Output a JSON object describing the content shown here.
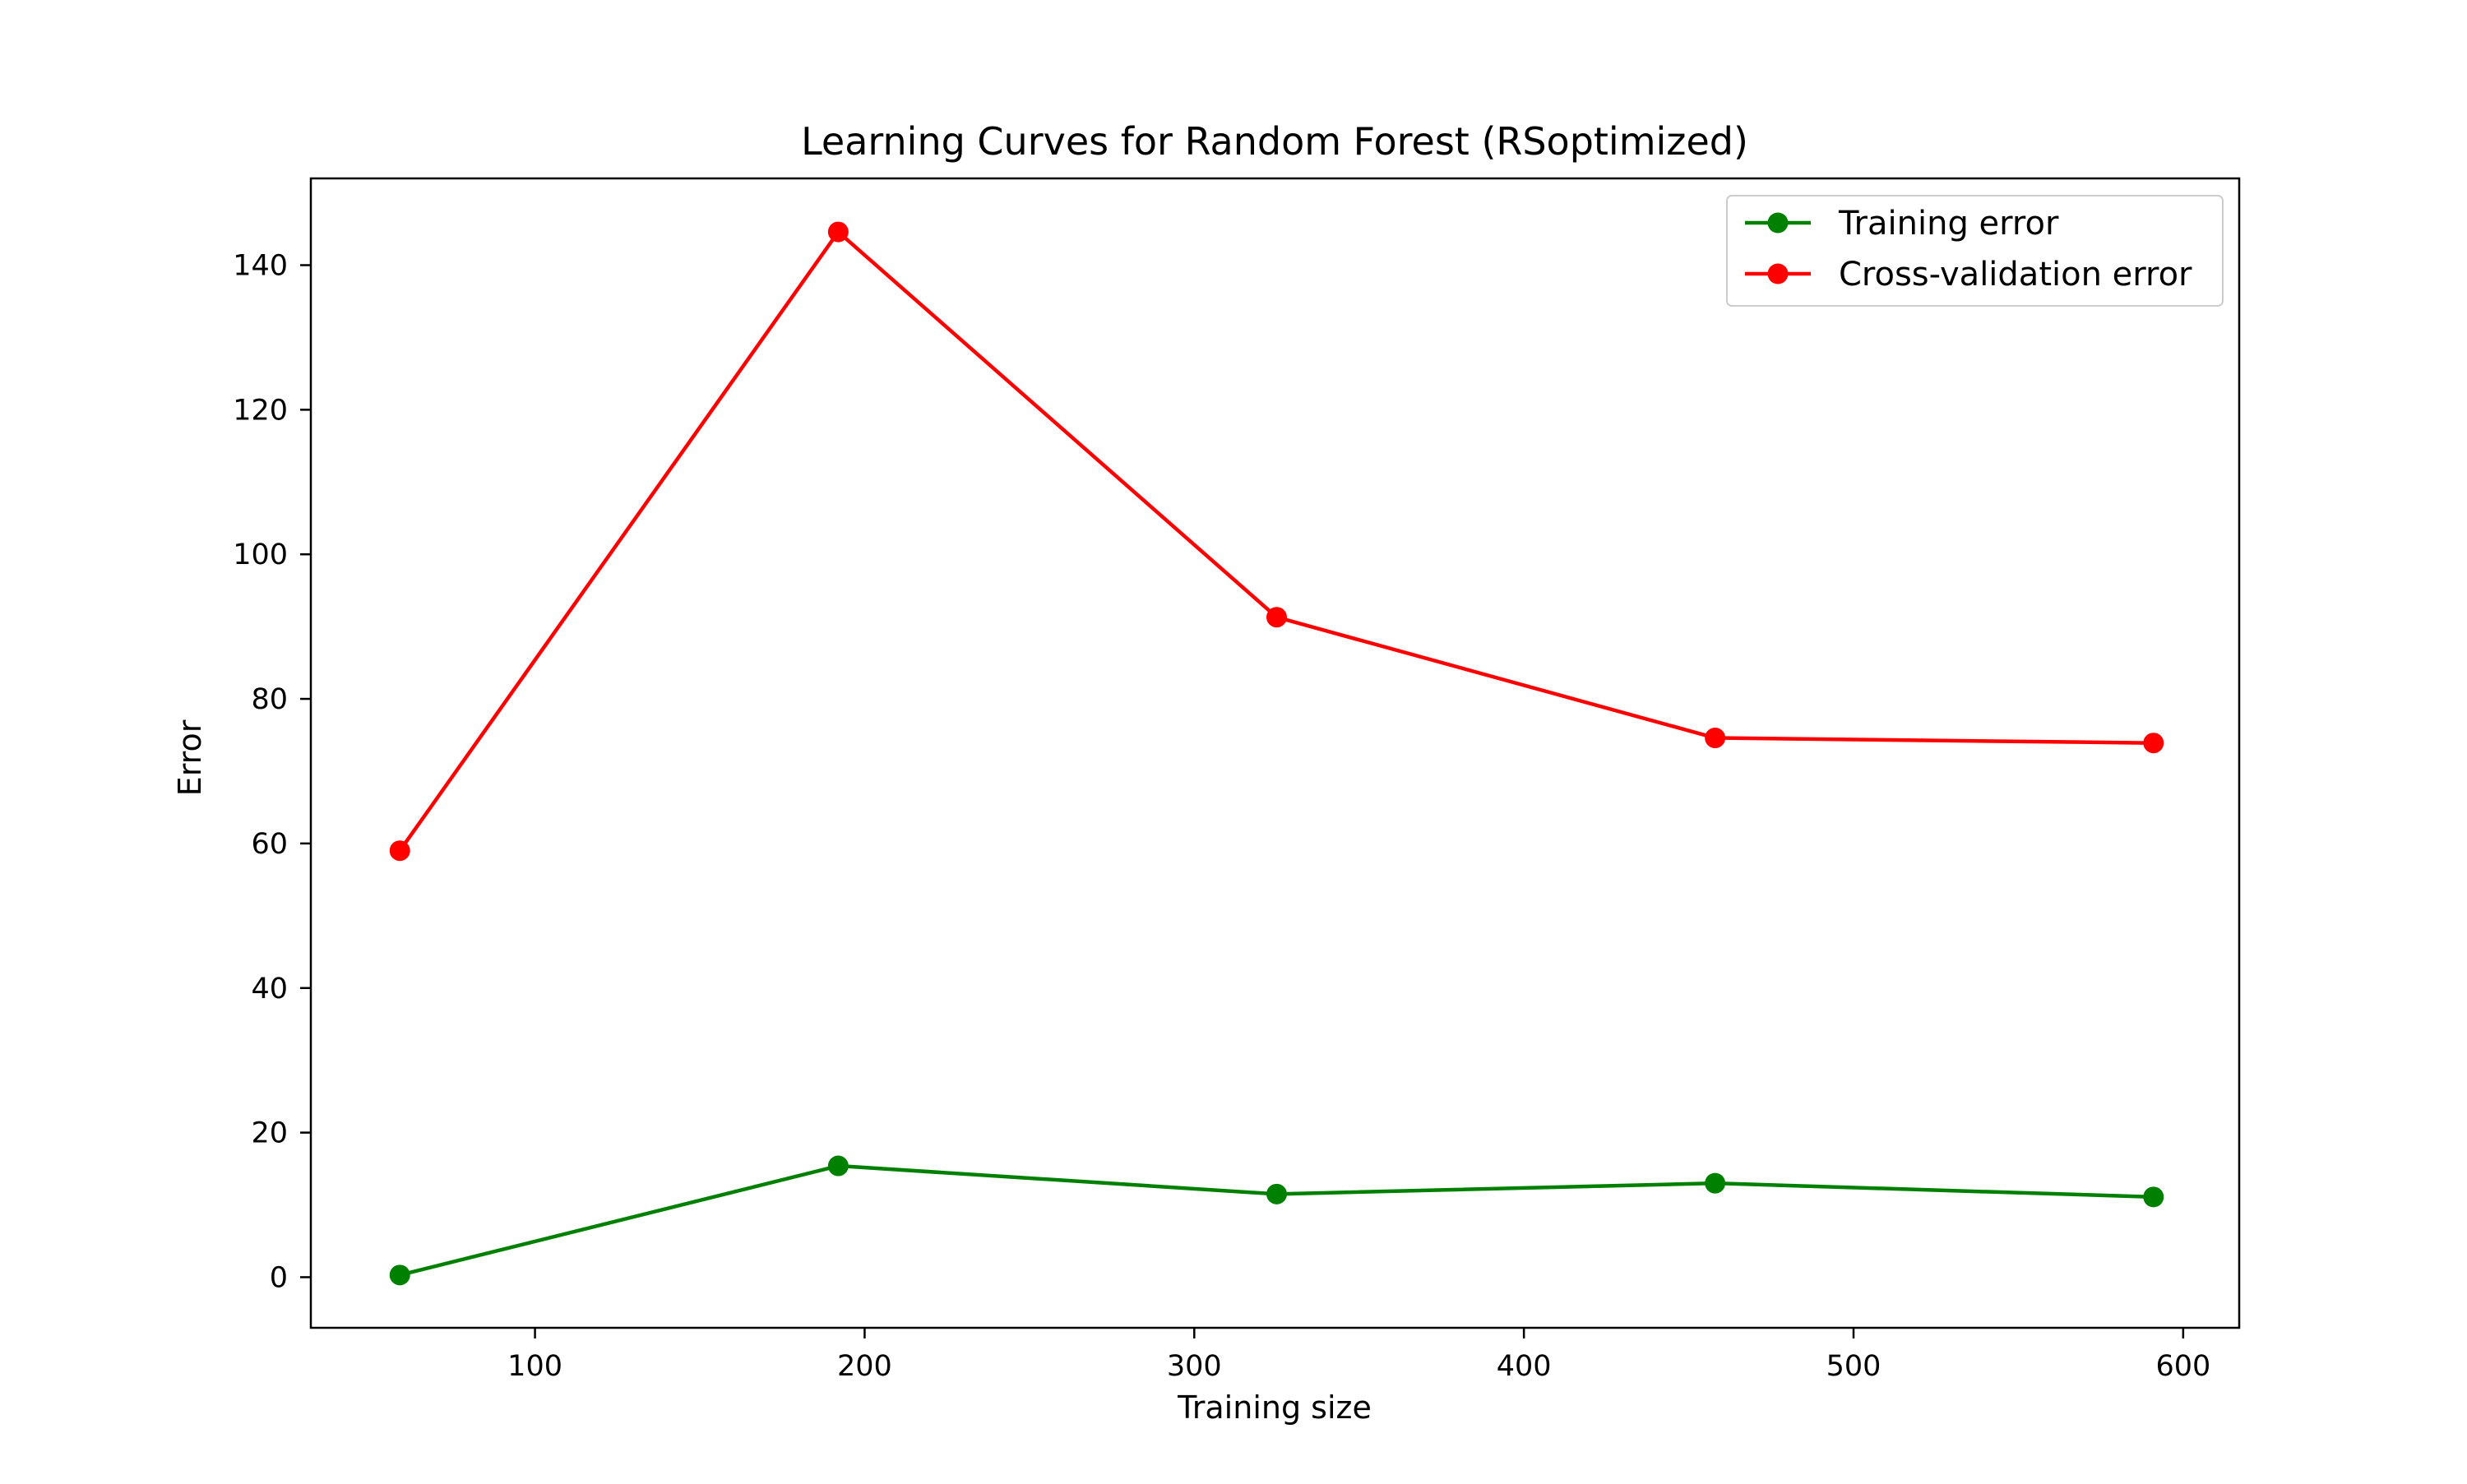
{
  "chart_data": {
    "type": "line",
    "title": "Learning Curves for Random Forest (RSoptimized)",
    "xlabel": "Training size",
    "ylabel": "Error",
    "xlim": [
      32,
      617
    ],
    "ylim": [
      -7,
      152
    ],
    "xticks": [
      100,
      200,
      300,
      400,
      500,
      600
    ],
    "yticks": [
      0,
      20,
      40,
      60,
      80,
      100,
      120,
      140
    ],
    "grid": false,
    "legend_position": "top-right",
    "x": [
      59,
      192,
      325,
      458,
      591
    ],
    "series": [
      {
        "name": "Training error",
        "color": "#008000",
        "marker": "circle",
        "values": [
          0.3,
          15.4,
          11.5,
          13.0,
          11.1
        ]
      },
      {
        "name": "Cross-validation error",
        "color": "#ff0000",
        "marker": "circle",
        "values": [
          59.0,
          144.6,
          91.3,
          74.6,
          73.9
        ]
      }
    ]
  }
}
